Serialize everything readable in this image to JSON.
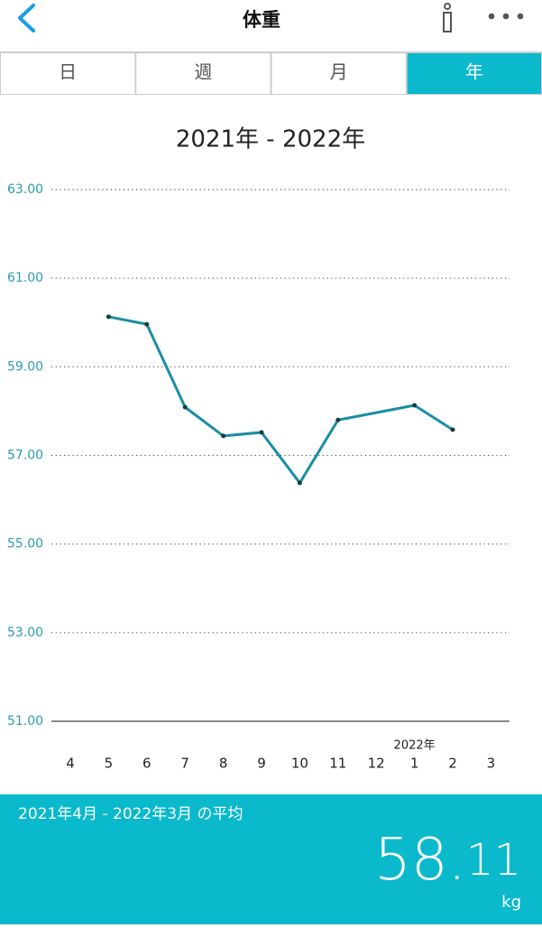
{
  "header": {
    "title": "体重"
  },
  "tabs": [
    "日",
    "週",
    "月",
    "年"
  ],
  "active_tab": 3,
  "chart_data": {
    "type": "line",
    "title": "2021年 - 2022年",
    "categories": [
      "4",
      "5",
      "6",
      "7",
      "8",
      "9",
      "10",
      "11",
      "12",
      "1",
      "2",
      "3"
    ],
    "annotation": "2022年",
    "values": [
      null,
      60.13,
      59.96,
      58.09,
      57.44,
      57.52,
      56.38,
      57.8,
      null,
      58.13,
      57.58,
      null
    ],
    "color": "#1b8ea3",
    "ylim": [
      51,
      63
    ],
    "yticks": [
      {
        "value": 51,
        "label": "51.00"
      },
      {
        "value": 53,
        "label": "53.00"
      },
      {
        "value": 55,
        "label": "55.00"
      },
      {
        "value": 57,
        "label": "57.00"
      },
      {
        "value": 59,
        "label": "59.00"
      },
      {
        "value": 61,
        "label": "61.00"
      },
      {
        "value": 63,
        "label": "63.00"
      }
    ],
    "grid": true
  },
  "summary": {
    "label": "2021年4月 - 2022年3月 の平均",
    "value": 58.11,
    "unit": "kg"
  }
}
